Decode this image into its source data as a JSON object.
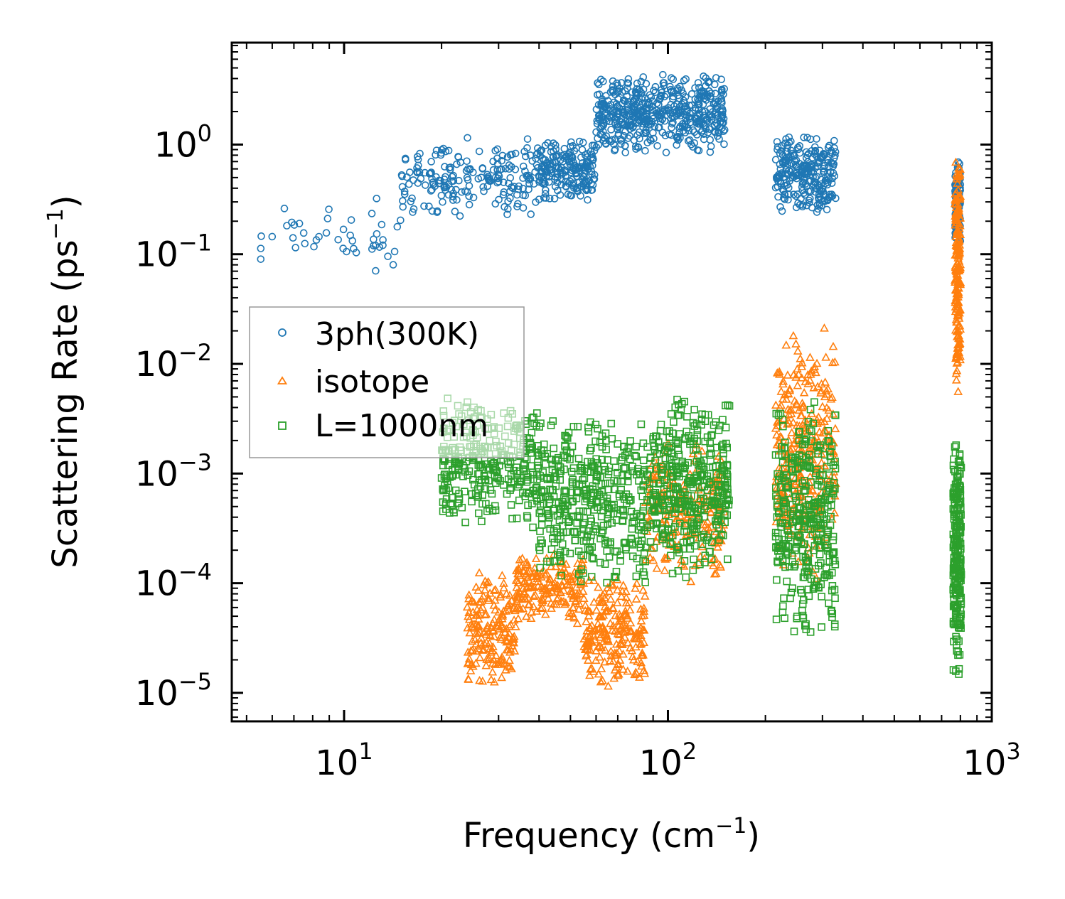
{
  "chart_data": {
    "type": "scatter",
    "title": "",
    "xlabel": "Frequency (cm",
    "xlabel_sup": "−1",
    "xlabel_end": ")",
    "ylabel": "Scattering Rate (ps",
    "ylabel_sup": "−1",
    "ylabel_end": ")",
    "xscale": "log",
    "yscale": "log",
    "xlim": [
      4.5,
      1000
    ],
    "ylim": [
      5.5e-06,
      8.5
    ],
    "x_ticks": [
      {
        "value": 10,
        "base": "10",
        "exp": "1"
      },
      {
        "value": 100,
        "base": "10",
        "exp": "2"
      },
      {
        "value": 1000,
        "base": "10",
        "exp": "3"
      }
    ],
    "y_ticks": [
      {
        "value": 1e-05,
        "base": "10",
        "exp": "−5"
      },
      {
        "value": 0.0001,
        "base": "10",
        "exp": "−4"
      },
      {
        "value": 0.001,
        "base": "10",
        "exp": "−3"
      },
      {
        "value": 0.01,
        "base": "10",
        "exp": "−2"
      },
      {
        "value": 0.1,
        "base": "10",
        "exp": "−1"
      },
      {
        "value": 1,
        "base": "10",
        "exp": "0"
      }
    ],
    "legend_position": "center-left",
    "series": [
      {
        "name": "3ph(300K)",
        "marker": "circle",
        "color": "#1f77b4",
        "clusters": [
          {
            "x": [
              5.5,
              15
            ],
            "y": [
              0.05,
              0.4
            ],
            "n": 45
          },
          {
            "x": [
              15,
              40
            ],
            "y": [
              0.2,
              1.2
            ],
            "n": 200
          },
          {
            "x": [
              40,
              60
            ],
            "y": [
              0.3,
              1.2
            ],
            "n": 200
          },
          {
            "x": [
              60,
              90
            ],
            "y": [
              0.8,
              4.5
            ],
            "n": 260
          },
          {
            "x": [
              90,
              150
            ],
            "y": [
              0.8,
              4.5
            ],
            "n": 260
          },
          {
            "x": [
              215,
              330
            ],
            "y": [
              0.22,
              1.3
            ],
            "n": 260
          },
          {
            "x": [
              770,
              800
            ],
            "y": [
              0.12,
              0.75
            ],
            "n": 140
          }
        ]
      },
      {
        "name": "isotope",
        "marker": "triangle",
        "color": "#ff7f0e",
        "clusters": [
          {
            "x": [
              24,
              34
            ],
            "y": [
              1e-05,
              0.00015
            ],
            "n": 180
          },
          {
            "x": [
              34,
              55
            ],
            "y": [
              4e-05,
              0.0002
            ],
            "n": 180
          },
          {
            "x": [
              55,
              85
            ],
            "y": [
              1e-05,
              0.00012
            ],
            "n": 220
          },
          {
            "x": [
              85,
              150
            ],
            "y": [
              0.0001,
              0.002
            ],
            "n": 200
          },
          {
            "x": [
              215,
              330
            ],
            "y": [
              0.0001,
              0.024
            ],
            "n": 320
          },
          {
            "x": [
              770,
              800
            ],
            "y": [
              0.005,
              0.9
            ],
            "n": 200
          }
        ]
      },
      {
        "name": "L=1000nm",
        "marker": "square",
        "color": "#2ca02c",
        "clusters": [
          {
            "x": [
              20,
              40
            ],
            "y": [
              0.0003,
              0.005
            ],
            "n": 320
          },
          {
            "x": [
              40,
              90
            ],
            "y": [
              8e-05,
              0.004
            ],
            "n": 420
          },
          {
            "x": [
              90,
              155
            ],
            "y": [
              0.0001,
              0.006
            ],
            "n": 380
          },
          {
            "x": [
              215,
              330
            ],
            "y": [
              3e-05,
              0.005
            ],
            "n": 360
          },
          {
            "x": [
              760,
              805
            ],
            "y": [
              1.3e-05,
              0.0024
            ],
            "n": 240
          }
        ]
      }
    ]
  }
}
